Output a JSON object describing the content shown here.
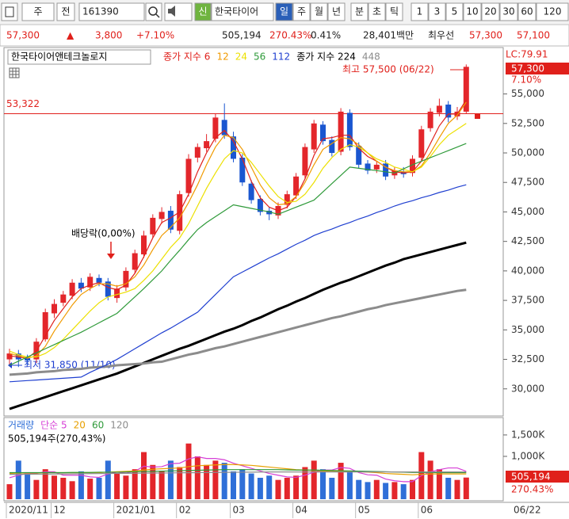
{
  "toolbar": [
    "주",
    "전",
    "161390",
    "신",
    "한국타이어",
    "일",
    "주",
    "월",
    "년",
    "분",
    "초",
    "틱",
    "1",
    "3",
    "5",
    "10",
    "20",
    "30",
    "60",
    "120"
  ],
  "quote": [
    "57,300",
    "▲",
    "3,800",
    "+7.10%",
    "505,194",
    "270.43%",
    "0.41%",
    "28,401백만",
    "최우선",
    "57,300",
    "57,100"
  ],
  "chart_data": [
    {
      "type": "candlestick",
      "title": "한국타이어앤테크놀로지",
      "categories": [
        "2020/11",
        null,
        null,
        null,
        null,
        "12",
        null,
        null,
        null,
        null,
        null,
        null,
        "2021/01",
        null,
        null,
        null,
        null,
        null,
        null,
        "02",
        null,
        null,
        null,
        null,
        null,
        "03",
        null,
        null,
        null,
        null,
        null,
        null,
        "04",
        null,
        null,
        null,
        null,
        null,
        null,
        "05",
        null,
        null,
        null,
        null,
        null,
        null,
        "06",
        null,
        null,
        null,
        null,
        null
      ],
      "open": [
        32500,
        33000,
        32600,
        32500,
        34200,
        36400,
        37300,
        37900,
        39000,
        38600,
        39400,
        39100,
        37700,
        38600,
        40100,
        41400,
        43100,
        44400,
        45100,
        43400,
        46600,
        49600,
        50400,
        51200,
        52800,
        51400,
        49600,
        47400,
        46100,
        45100,
        44700,
        45600,
        46400,
        48100,
        50300,
        52400,
        51100,
        50100,
        53400,
        50600,
        49100,
        48600,
        49100,
        48100,
        48400,
        48300,
        49600,
        52100,
        53400,
        54100,
        53100,
        53500
      ],
      "high": [
        33400,
        33300,
        32900,
        34300,
        36800,
        37600,
        38300,
        39300,
        39400,
        39800,
        39700,
        39400,
        38800,
        40300,
        41800,
        43400,
        44800,
        45400,
        45500,
        46800,
        49900,
        50800,
        51600,
        53300,
        54200,
        51800,
        49900,
        47700,
        46400,
        45400,
        45800,
        46800,
        48300,
        50800,
        52800,
        52700,
        51400,
        53800,
        53700,
        50900,
        49400,
        49300,
        49400,
        48800,
        48800,
        49800,
        52300,
        53800,
        54600,
        54400,
        53900,
        57500
      ],
      "low": [
        32100,
        31850,
        32000,
        32200,
        34000,
        36000,
        37000,
        37600,
        38200,
        38300,
        38700,
        37500,
        37300,
        38300,
        39800,
        41100,
        42800,
        44000,
        43200,
        43100,
        46300,
        49200,
        50100,
        50900,
        51200,
        49200,
        47200,
        45700,
        44700,
        44300,
        44400,
        45300,
        46100,
        47800,
        50000,
        50700,
        49700,
        49800,
        50200,
        48700,
        48200,
        48300,
        47700,
        47800,
        47900,
        48000,
        49300,
        51800,
        53100,
        52600,
        52800,
        53300
      ],
      "close": [
        33000,
        32500,
        32400,
        34000,
        36500,
        37200,
        38000,
        39000,
        38500,
        39500,
        39000,
        37800,
        38500,
        40000,
        41500,
        43000,
        44500,
        45000,
        43500,
        46500,
        49500,
        50500,
        51000,
        53000,
        51500,
        49500,
        47500,
        46000,
        45000,
        44800,
        45500,
        46500,
        48000,
        50500,
        52500,
        51000,
        50000,
        53500,
        50500,
        49000,
        48500,
        49000,
        48000,
        48500,
        48200,
        49500,
        52000,
        53500,
        54000,
        53000,
        53500,
        57300
      ],
      "up_color": "#e3262b",
      "down_color": "#1a56d0",
      "series": [
        {
          "name": "종가 지수 6",
          "color": "#e0201b",
          "values": [
            32800,
            32700,
            32600,
            33200,
            34500,
            35800,
            36800,
            37800,
            38500,
            38800,
            39000,
            38600,
            38400,
            38800,
            39800,
            41200,
            42800,
            44100,
            44500,
            45000,
            46500,
            48400,
            50000,
            51300,
            51900,
            51000,
            49500,
            47600,
            46200,
            45400,
            45100,
            45400,
            46300,
            47800,
            49800,
            51200,
            51300,
            51500,
            51500,
            50400,
            49700,
            49300,
            48800,
            48400,
            48300,
            48400,
            49300,
            50800,
            52300,
            53300,
            53300,
            54500
          ]
        },
        {
          "name": "12",
          "color": "#f09a00",
          "values": [
            33000,
            32800,
            32600,
            32800,
            33600,
            34900,
            36000,
            37100,
            38000,
            38500,
            38900,
            38900,
            38700,
            38900,
            39500,
            40500,
            41800,
            43000,
            43700,
            44500,
            45800,
            47300,
            49000,
            50500,
            51500,
            51300,
            50300,
            48800,
            47300,
            46200,
            45600,
            45700,
            46300,
            47500,
            49000,
            50300,
            50800,
            51300,
            51200,
            50700,
            50000,
            49300,
            48800,
            48500,
            48400,
            48400,
            48900,
            50000,
            51300,
            52500,
            53200,
            54300
          ]
        },
        {
          "name": "24",
          "color": "#ece000",
          "values": [
            33200,
            32900,
            32700,
            32700,
            33000,
            33500,
            34200,
            35000,
            35800,
            36600,
            37300,
            37800,
            38000,
            38200,
            38500,
            39200,
            40000,
            41000,
            42000,
            42800,
            44000,
            45500,
            47000,
            48300,
            49500,
            50200,
            50000,
            49200,
            48200,
            47200,
            46300,
            45800,
            45900,
            46500,
            47500,
            48700,
            49600,
            50300,
            50700,
            50500,
            50000,
            49500,
            49200,
            48800,
            48600,
            48400,
            48800,
            49700,
            50700,
            51500,
            52000,
            52500
          ]
        },
        {
          "name": "56",
          "color": "#2f9a3a",
          "values": [
            32000,
            32350,
            32700,
            33050,
            33400,
            33750,
            34100,
            34450,
            34800,
            35200,
            35600,
            36000,
            36400,
            37100,
            37800,
            38500,
            39250,
            40000,
            40900,
            41750,
            42650,
            43500,
            44100,
            44600,
            45100,
            45600,
            45450,
            45300,
            45150,
            45000,
            44800,
            45100,
            45400,
            45700,
            46000,
            46700,
            47400,
            48100,
            48800,
            48700,
            48600,
            48500,
            48400,
            48300,
            48650,
            49000,
            49300,
            49600,
            49900,
            50200,
            50500,
            50800
          ]
        },
        {
          "name": "112",
          "color": "#1f3fd0",
          "values": [
            30600,
            30650,
            30700,
            30750,
            30800,
            30850,
            30900,
            30950,
            31000,
            31400,
            31750,
            32100,
            32500,
            32950,
            33400,
            33850,
            34300,
            34750,
            35150,
            35600,
            36050,
            36500,
            37250,
            38000,
            38750,
            39500,
            39900,
            40300,
            40700,
            41100,
            41450,
            41850,
            42250,
            42600,
            43000,
            43300,
            43550,
            43850,
            44100,
            44400,
            44650,
            44950,
            45200,
            45500,
            45750,
            45950,
            46200,
            46400,
            46650,
            46850,
            47100,
            47300
          ]
        },
        {
          "name": "종가 지수 224",
          "color": "#000000",
          "width": 3,
          "values": [
            28300,
            28550,
            28800,
            29050,
            29300,
            29550,
            29800,
            30050,
            30300,
            30550,
            30800,
            31050,
            31300,
            31600,
            31900,
            32200,
            32500,
            32800,
            33100,
            33400,
            33650,
            33950,
            34250,
            34550,
            34850,
            35100,
            35400,
            35750,
            36050,
            36400,
            36750,
            37050,
            37400,
            37700,
            38050,
            38400,
            38700,
            39000,
            39250,
            39550,
            39850,
            40150,
            40450,
            40700,
            41000,
            41200,
            41400,
            41600,
            41800,
            42000,
            42200,
            42400
          ]
        },
        {
          "name": "448",
          "color": "#8c8c8c",
          "width": 3,
          "values": [
            31200,
            31250,
            31300,
            31400,
            31450,
            31500,
            31600,
            31650,
            31700,
            31800,
            31850,
            31900,
            32000,
            32050,
            32100,
            32150,
            32250,
            32300,
            32500,
            32700,
            32900,
            33050,
            33250,
            33450,
            33600,
            33800,
            34000,
            34200,
            34400,
            34600,
            34800,
            35000,
            35200,
            35400,
            35600,
            35800,
            36000,
            36150,
            36350,
            36550,
            36750,
            36900,
            37100,
            37250,
            37400,
            37550,
            37700,
            37850,
            38000,
            38150,
            38300,
            38400
          ]
        }
      ],
      "ylim": [
        27700,
        58800
      ],
      "yticks": [
        {
          "value": 30000,
          "label": "30,000"
        },
        {
          "value": 32500,
          "label": "32,500"
        },
        {
          "value": 35000,
          "label": "35,000"
        },
        {
          "value": 37500,
          "label": "37,500"
        },
        {
          "value": 40000,
          "label": "40,000"
        },
        {
          "value": 42500,
          "label": "42,500"
        },
        {
          "value": 45000,
          "label": "45,000"
        },
        {
          "value": 47500,
          "label": "47,500"
        },
        {
          "value": 50000,
          "label": "50,000"
        },
        {
          "value": 52500,
          "label": "52,500"
        },
        {
          "value": 55000,
          "label": "55,000"
        }
      ],
      "reference": {
        "value": 53322,
        "label": "53,322"
      },
      "high_label": "최고 57,500 (06/22)",
      "low_label": "최저 31,850 (11/10)",
      "event_label": "배당락(0,00%)",
      "axis_header": [
        "LC:79.91",
        "57,300",
        "7.10%"
      ],
      "last_date": "06/22"
    },
    {
      "type": "bar",
      "title": "거래량",
      "values": [
        350000,
        900000,
        600000,
        450000,
        700000,
        550000,
        500000,
        420000,
        650000,
        480000,
        500000,
        900000,
        600000,
        550000,
        700000,
        1100000,
        800000,
        650000,
        900000,
        750000,
        1300000,
        1000000,
        800000,
        900000,
        850000,
        650000,
        700000,
        600000,
        500000,
        550000,
        450000,
        500000,
        550000,
        750000,
        900000,
        700000,
        500000,
        850000,
        650000,
        450000,
        400000,
        450000,
        380000,
        400000,
        350000,
        450000,
        1100000,
        900000,
        700000,
        500000,
        450000,
        505194
      ],
      "color": "#2f6fd8",
      "series": [
        {
          "name": "단순 5",
          "color": "#d63fd6",
          "values": [
            500000,
            560000,
            600000,
            600000,
            640000,
            640000,
            560000,
            560000,
            560000,
            520000,
            510000,
            590000,
            630000,
            610000,
            650000,
            770000,
            750000,
            760000,
            830000,
            840000,
            940000,
            990000,
            950000,
            950000,
            920000,
            840000,
            780000,
            720000,
            660000,
            600000,
            560000,
            520000,
            510000,
            560000,
            630000,
            680000,
            680000,
            740000,
            720000,
            620000,
            570000,
            560000,
            470000,
            430000,
            410000,
            410000,
            550000,
            640000,
            690000,
            730000,
            730000,
            650000
          ]
        },
        {
          "name": "20",
          "color": "#e8a000",
          "values": [
            600000,
            610000,
            610000,
            610000,
            620000,
            620000,
            620000,
            620000,
            620000,
            620000,
            620000,
            630000,
            640000,
            650000,
            660000,
            680000,
            700000,
            710000,
            720000,
            730000,
            760000,
            780000,
            790000,
            800000,
            810000,
            810000,
            800000,
            790000,
            770000,
            750000,
            730000,
            710000,
            690000,
            680000,
            670000,
            660000,
            650000,
            650000,
            650000,
            640000,
            630000,
            620000,
            600000,
            590000,
            580000,
            570000,
            580000,
            590000,
            590000,
            590000,
            590000,
            590000
          ]
        },
        {
          "name": "60",
          "color": "#2f9a3a",
          "values": [
            620000,
            620000,
            620000,
            620000,
            620000,
            620000,
            620000,
            625000,
            625000,
            625000,
            630000,
            630000,
            630000,
            635000,
            640000,
            645000,
            650000,
            655000,
            660000,
            665000,
            670000,
            675000,
            680000,
            685000,
            690000,
            690000,
            690000,
            690000,
            690000,
            690000,
            690000,
            685000,
            680000,
            680000,
            680000,
            675000,
            670000,
            665000,
            660000,
            655000,
            650000,
            645000,
            640000,
            635000,
            630000,
            625000,
            625000,
            625000,
            620000,
            620000,
            620000,
            620000
          ]
        },
        {
          "name": "120",
          "color": "#8c8c8c",
          "values": [
            580000,
            580000,
            582000,
            584000,
            586000,
            588000,
            590000,
            592000,
            594000,
            596000,
            598000,
            600000,
            602000,
            604000,
            606000,
            608000,
            610000,
            612000,
            614000,
            616000,
            618000,
            620000,
            622000,
            624000,
            626000,
            628000,
            630000,
            632000,
            634000,
            636000,
            636000,
            636000,
            636000,
            636000,
            636000,
            636000,
            636000,
            636000,
            636000,
            636000,
            636000,
            636000,
            636000,
            636000,
            636000,
            636000,
            636000,
            636000,
            636000,
            636000,
            636000,
            636000
          ]
        }
      ],
      "ylim": [
        0,
        1850000
      ],
      "yticks": [
        {
          "value": 1000000,
          "label": "1,000K"
        },
        {
          "value": 1500000,
          "label": "1,500K"
        }
      ],
      "summary": "505,194주(270,43%)",
      "last_label": "505,194",
      "last_ratio": "270.43%"
    }
  ]
}
